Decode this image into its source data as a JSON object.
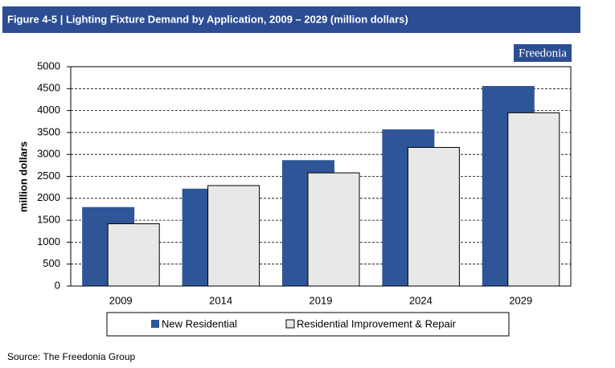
{
  "header": {
    "title": "Figure 4-5 | Lighting Fixture Demand by Application, 2009 – 2029 (million dollars)",
    "logo": "Freedonia"
  },
  "chart_data": {
    "type": "bar",
    "ylabel": "million dollars",
    "categories": [
      "2009",
      "2014",
      "2019",
      "2024",
      "2029"
    ],
    "series": [
      {
        "name": "New Residential",
        "color": "#2e5597",
        "values": [
          1800,
          2220,
          2870,
          3570,
          4560
        ]
      },
      {
        "name": "Residential Improvement & Repair",
        "color": "#e8e8e8",
        "values": [
          1420,
          2290,
          2580,
          3160,
          3950
        ]
      }
    ],
    "ylim": [
      0,
      5000
    ],
    "yticks": [
      0,
      500,
      1000,
      1500,
      2000,
      2500,
      3000,
      3500,
      4000,
      4500,
      5000
    ],
    "grid": true,
    "legend": "bottom"
  },
  "footer": {
    "source": "Source: The Freedonia Group"
  }
}
